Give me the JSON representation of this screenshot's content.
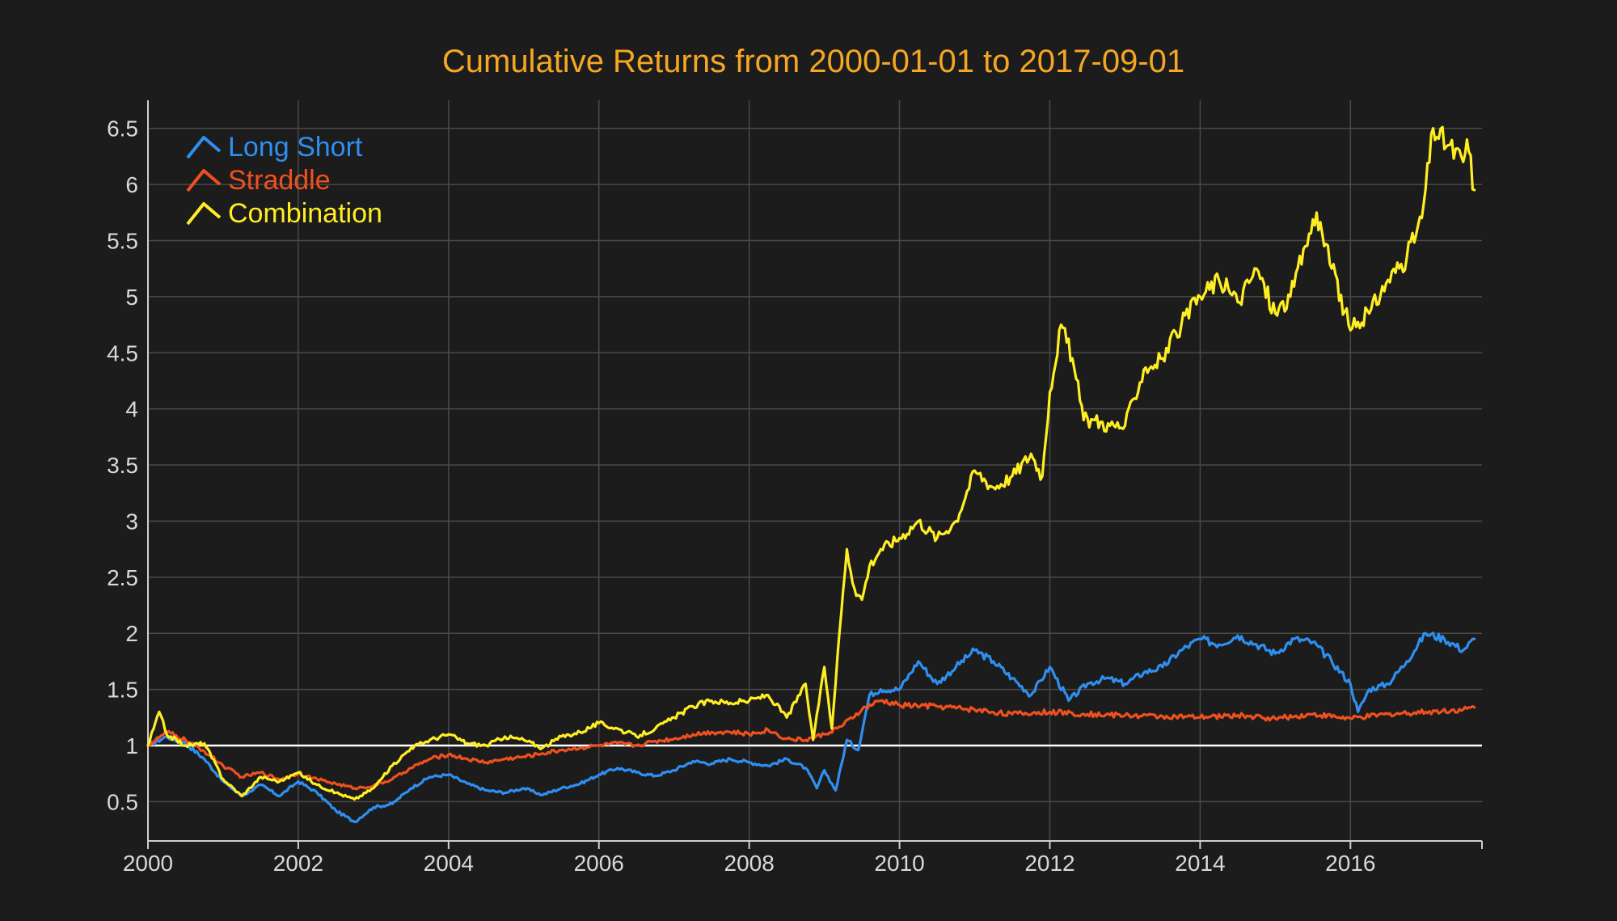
{
  "chart_data": {
    "type": "line",
    "title": "Cumulative Returns from 2000-01-01 to 2017-09-01",
    "xlabel": "",
    "ylabel": "",
    "xlim": [
      2000,
      2017.75
    ],
    "ylim": [
      0.15,
      6.75
    ],
    "x_ticks": [
      "2000",
      "2002",
      "2004",
      "2006",
      "2008",
      "2010",
      "2012",
      "2014",
      "2016"
    ],
    "x_tick_values": [
      2000,
      2002,
      2004,
      2006,
      2008,
      2010,
      2012,
      2014,
      2016
    ],
    "y_ticks": [
      "0.5",
      "1",
      "1.5",
      "2",
      "2.5",
      "3",
      "3.5",
      "4",
      "4.5",
      "5",
      "5.5",
      "6",
      "6.5"
    ],
    "y_tick_values": [
      0.5,
      1,
      1.5,
      2,
      2.5,
      3,
      3.5,
      4,
      4.5,
      5,
      5.5,
      6,
      6.5
    ],
    "grid": true,
    "legend_position": "top-left",
    "baseline": 1,
    "colors": {
      "background": "#1c1c1c",
      "title": "#f5a623",
      "ticks": "#d9d9d9",
      "grid": "#4a4a4a",
      "baseline": "#ffffff"
    },
    "series": [
      {
        "name": "Long Short",
        "color": "#2f8ff0",
        "x": [
          2000.0,
          2000.25,
          2000.5,
          2000.75,
          2001.0,
          2001.25,
          2001.5,
          2001.75,
          2002.0,
          2002.25,
          2002.5,
          2002.75,
          2003.0,
          2003.25,
          2003.5,
          2003.75,
          2004.0,
          2004.25,
          2004.5,
          2004.75,
          2005.0,
          2005.25,
          2005.5,
          2005.75,
          2006.0,
          2006.25,
          2006.5,
          2006.75,
          2007.0,
          2007.25,
          2007.5,
          2007.75,
          2008.0,
          2008.25,
          2008.5,
          2008.75,
          2008.9,
          2009.0,
          2009.15,
          2009.3,
          2009.45,
          2009.6,
          2009.75,
          2010.0,
          2010.25,
          2010.5,
          2010.75,
          2011.0,
          2011.25,
          2011.5,
          2011.75,
          2012.0,
          2012.25,
          2012.5,
          2012.75,
          2013.0,
          2013.25,
          2013.5,
          2013.75,
          2014.0,
          2014.25,
          2014.5,
          2014.75,
          2015.0,
          2015.25,
          2015.5,
          2015.75,
          2016.0,
          2016.1,
          2016.25,
          2016.5,
          2016.75,
          2017.0,
          2017.25,
          2017.5,
          2017.65
        ],
        "values": [
          1.0,
          1.08,
          1.02,
          0.88,
          0.68,
          0.55,
          0.65,
          0.55,
          0.68,
          0.58,
          0.42,
          0.32,
          0.45,
          0.48,
          0.62,
          0.72,
          0.74,
          0.66,
          0.6,
          0.58,
          0.62,
          0.56,
          0.62,
          0.66,
          0.74,
          0.8,
          0.76,
          0.73,
          0.78,
          0.86,
          0.84,
          0.88,
          0.85,
          0.82,
          0.88,
          0.8,
          0.62,
          0.78,
          0.6,
          1.05,
          0.96,
          1.45,
          1.5,
          1.5,
          1.75,
          1.55,
          1.7,
          1.85,
          1.75,
          1.6,
          1.45,
          1.7,
          1.4,
          1.55,
          1.6,
          1.55,
          1.65,
          1.7,
          1.85,
          1.95,
          1.9,
          1.98,
          1.9,
          1.82,
          1.95,
          1.92,
          1.75,
          1.55,
          1.3,
          1.5,
          1.55,
          1.75,
          2.0,
          1.95,
          1.85,
          1.95
        ]
      },
      {
        "name": "Straddle",
        "color": "#f0501e",
        "x": [
          2000.0,
          2000.25,
          2000.5,
          2000.75,
          2001.0,
          2001.25,
          2001.5,
          2001.75,
          2002.0,
          2002.25,
          2002.5,
          2002.75,
          2003.0,
          2003.25,
          2003.5,
          2003.75,
          2004.0,
          2004.25,
          2004.5,
          2004.75,
          2005.0,
          2005.25,
          2005.5,
          2005.75,
          2006.0,
          2006.25,
          2006.5,
          2006.75,
          2007.0,
          2007.25,
          2007.5,
          2007.75,
          2008.0,
          2008.25,
          2008.5,
          2008.75,
          2009.0,
          2009.25,
          2009.5,
          2009.75,
          2010.0,
          2010.5,
          2011.0,
          2011.5,
          2012.0,
          2012.5,
          2013.0,
          2013.5,
          2014.0,
          2014.5,
          2015.0,
          2015.5,
          2016.0,
          2016.5,
          2017.0,
          2017.5,
          2017.65
        ],
        "values": [
          1.0,
          1.12,
          1.05,
          0.95,
          0.82,
          0.72,
          0.76,
          0.7,
          0.75,
          0.7,
          0.66,
          0.62,
          0.64,
          0.7,
          0.8,
          0.88,
          0.92,
          0.88,
          0.85,
          0.88,
          0.9,
          0.93,
          0.96,
          0.98,
          1.0,
          1.02,
          1.0,
          1.04,
          1.06,
          1.1,
          1.12,
          1.12,
          1.1,
          1.14,
          1.06,
          1.05,
          1.1,
          1.18,
          1.32,
          1.4,
          1.36,
          1.35,
          1.32,
          1.28,
          1.3,
          1.28,
          1.27,
          1.26,
          1.25,
          1.27,
          1.24,
          1.28,
          1.24,
          1.28,
          1.3,
          1.32,
          1.34
        ]
      },
      {
        "name": "Combination",
        "color": "#ffee22",
        "x": [
          2000.0,
          2000.15,
          2000.25,
          2000.5,
          2000.75,
          2001.0,
          2001.25,
          2001.5,
          2001.75,
          2002.0,
          2002.25,
          2002.5,
          2002.75,
          2003.0,
          2003.25,
          2003.5,
          2003.75,
          2004.0,
          2004.25,
          2004.5,
          2004.75,
          2005.0,
          2005.25,
          2005.5,
          2005.75,
          2006.0,
          2006.25,
          2006.5,
          2006.75,
          2007.0,
          2007.25,
          2007.5,
          2007.75,
          2008.0,
          2008.25,
          2008.5,
          2008.75,
          2008.85,
          2009.0,
          2009.1,
          2009.2,
          2009.3,
          2009.4,
          2009.5,
          2009.6,
          2009.75,
          2010.0,
          2010.25,
          2010.5,
          2010.75,
          2011.0,
          2011.25,
          2011.5,
          2011.75,
          2011.9,
          2012.0,
          2012.15,
          2012.3,
          2012.45,
          2012.6,
          2012.8,
          2013.0,
          2013.25,
          2013.5,
          2013.75,
          2014.0,
          2014.25,
          2014.5,
          2014.75,
          2015.0,
          2015.2,
          2015.4,
          2015.55,
          2015.75,
          2016.0,
          2016.25,
          2016.5,
          2016.75,
          2016.95,
          2017.1,
          2017.3,
          2017.5,
          2017.55,
          2017.65
        ],
        "values": [
          1.0,
          1.3,
          1.1,
          1.0,
          1.02,
          0.7,
          0.55,
          0.72,
          0.68,
          0.76,
          0.65,
          0.58,
          0.52,
          0.62,
          0.82,
          0.98,
          1.05,
          1.1,
          1.02,
          1.0,
          1.08,
          1.05,
          0.98,
          1.08,
          1.12,
          1.2,
          1.15,
          1.08,
          1.15,
          1.25,
          1.35,
          1.4,
          1.38,
          1.4,
          1.45,
          1.25,
          1.55,
          1.05,
          1.7,
          1.15,
          2.0,
          2.75,
          2.4,
          2.3,
          2.6,
          2.75,
          2.85,
          3.0,
          2.85,
          3.0,
          3.45,
          3.3,
          3.4,
          3.6,
          3.4,
          4.15,
          4.75,
          4.45,
          3.9,
          3.9,
          3.85,
          3.85,
          4.35,
          4.45,
          4.75,
          5.0,
          5.15,
          4.95,
          5.25,
          4.85,
          5.0,
          5.45,
          5.75,
          5.25,
          4.7,
          4.85,
          5.15,
          5.35,
          5.7,
          6.5,
          6.35,
          6.2,
          6.4,
          5.95
        ]
      }
    ]
  }
}
